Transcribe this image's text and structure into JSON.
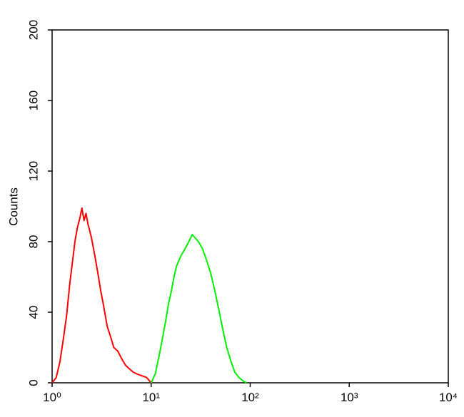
{
  "chart_data": {
    "type": "line",
    "y_label": "Counts",
    "xlog": true,
    "xlim": [
      1,
      10000
    ],
    "xticks": [
      {
        "value": 1,
        "label": "10⁰"
      },
      {
        "value": 10,
        "label": "10¹"
      },
      {
        "value": 100,
        "label": "10²"
      },
      {
        "value": 1000,
        "label": "10³"
      },
      {
        "value": 10000,
        "label": "10⁴"
      }
    ],
    "ylim": [
      0,
      200
    ],
    "yticks": [
      0,
      40,
      80,
      120,
      160,
      200
    ],
    "series": [
      {
        "color": "#ff0000",
        "x": [
          1.0,
          1.1,
          1.2,
          1.3,
          1.4,
          1.5,
          1.6,
          1.7,
          1.8,
          1.9,
          2.0,
          2.1,
          2.2,
          2.3,
          2.4,
          2.5,
          2.7,
          2.9,
          3.1,
          3.3,
          3.6,
          3.9,
          4.2,
          4.6,
          5.0,
          5.5,
          6.0,
          6.6,
          7.2,
          8.0,
          9.0,
          10.0
        ],
        "values": [
          0,
          3,
          12,
          25,
          38,
          55,
          68,
          80,
          88,
          93,
          99,
          92,
          96,
          90,
          86,
          82,
          72,
          62,
          52,
          44,
          32,
          26,
          20,
          18,
          14,
          10,
          8,
          6,
          5,
          4,
          3,
          0
        ]
      },
      {
        "color": "#00ee00",
        "x": [
          10,
          11,
          12,
          13,
          14,
          15,
          16,
          17,
          18,
          20,
          22,
          24,
          26,
          28,
          30,
          33,
          36,
          40,
          44,
          48,
          53,
          58,
          64,
          70,
          77,
          85,
          92
        ],
        "values": [
          0,
          5,
          15,
          25,
          35,
          45,
          52,
          60,
          66,
          72,
          76,
          80,
          84,
          82,
          80,
          76,
          70,
          62,
          52,
          42,
          30,
          20,
          12,
          6,
          3,
          1,
          0
        ]
      }
    ]
  }
}
